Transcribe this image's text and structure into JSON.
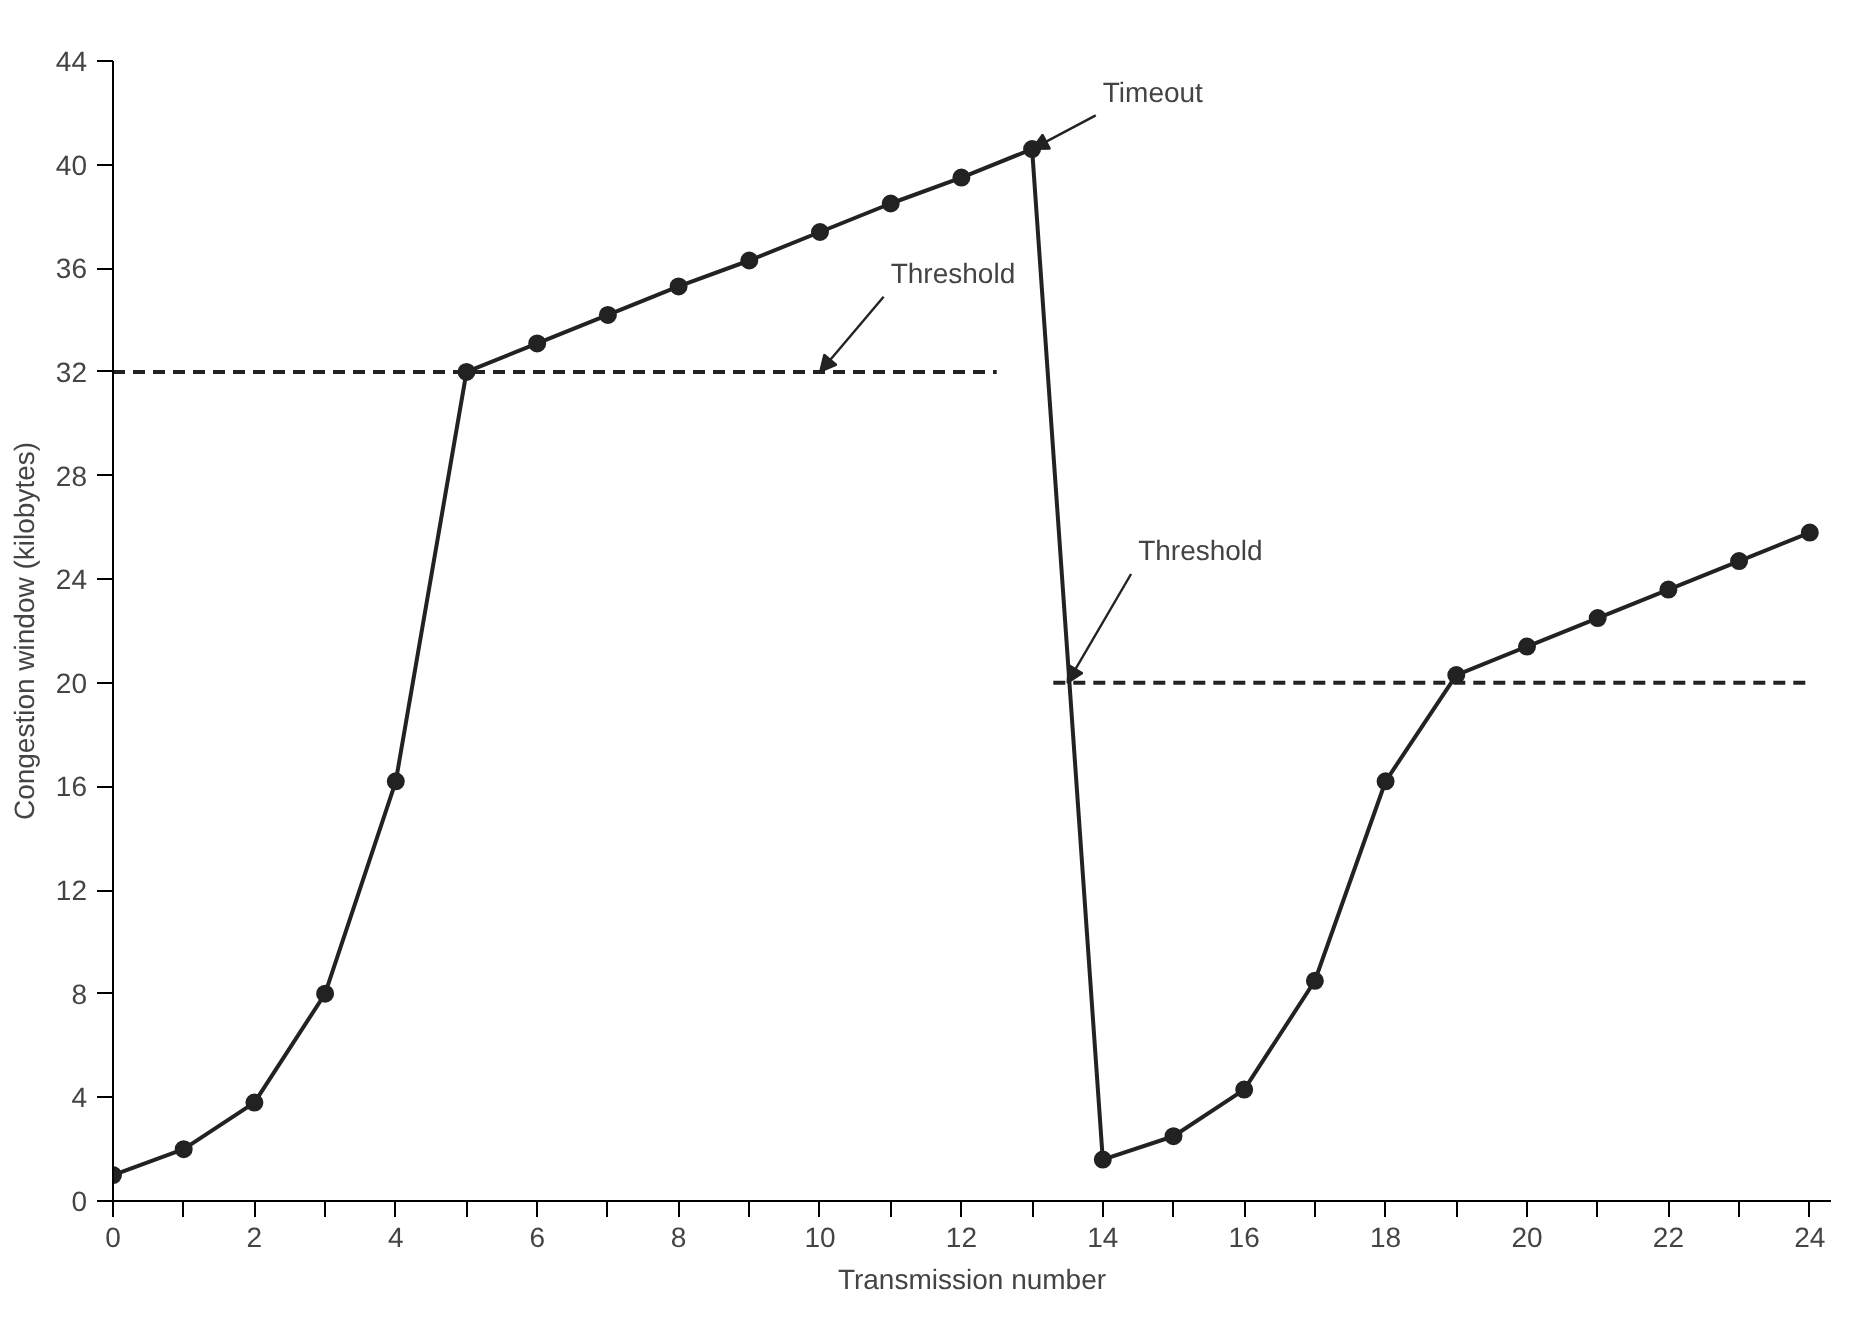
{
  "chart_data": {
    "type": "line",
    "xlabel": "Transmission number",
    "ylabel": "Congestion window (kilobytes)",
    "xlim": [
      0,
      24.3
    ],
    "ylim": [
      0,
      44
    ],
    "xticks": [
      0,
      {
        "value": 1,
        "label": null
      },
      2,
      {
        "value": 3,
        "label": null
      },
      4,
      {
        "value": 5,
        "label": null
      },
      6,
      {
        "value": 7,
        "label": null
      },
      8,
      {
        "value": 9,
        "label": null
      },
      10,
      {
        "value": 11,
        "label": null
      },
      12,
      {
        "value": 13,
        "label": null
      },
      14,
      {
        "value": 15,
        "label": null
      },
      16,
      {
        "value": 17,
        "label": null
      },
      18,
      {
        "value": 19,
        "label": null
      },
      20,
      {
        "value": 21,
        "label": null
      },
      22,
      {
        "value": 23,
        "label": null
      },
      24
    ],
    "yticks": [
      0,
      4,
      8,
      12,
      16,
      20,
      24,
      28,
      32,
      36,
      40,
      44
    ],
    "grid": false,
    "series": [
      {
        "color": "#222222",
        "marker": "circle",
        "line_style": "solid",
        "x": [
          0,
          1,
          2,
          3,
          4,
          5,
          6,
          7,
          8,
          9,
          10,
          11,
          12,
          13,
          14,
          15,
          16,
          17,
          18,
          19,
          20,
          21,
          22,
          23,
          24
        ],
        "values": [
          1,
          2,
          3.8,
          8,
          16.2,
          32,
          33.1,
          34.2,
          35.3,
          36.3,
          37.4,
          38.5,
          39.5,
          40.6,
          1.6,
          2.5,
          4.3,
          8.5,
          16.2,
          20.3,
          21.4,
          22.5,
          23.6,
          24.7,
          25.8
        ]
      },
      {
        "color": "#222222",
        "marker": "none",
        "line_style": "dashed",
        "x": [
          0,
          12.5
        ],
        "values": [
          32,
          32
        ]
      },
      {
        "color": "#222222",
        "marker": "none",
        "line_style": "dashed",
        "x": [
          13.3,
          24
        ],
        "values": [
          20,
          20
        ]
      }
    ],
    "annotations": [
      {
        "text": "Timeout",
        "x": 13,
        "y": 40.6
      },
      {
        "text": "Threshold",
        "x": 10,
        "y": 32
      },
      {
        "text": "Threshold",
        "x": 13.5,
        "y": 20
      }
    ]
  }
}
